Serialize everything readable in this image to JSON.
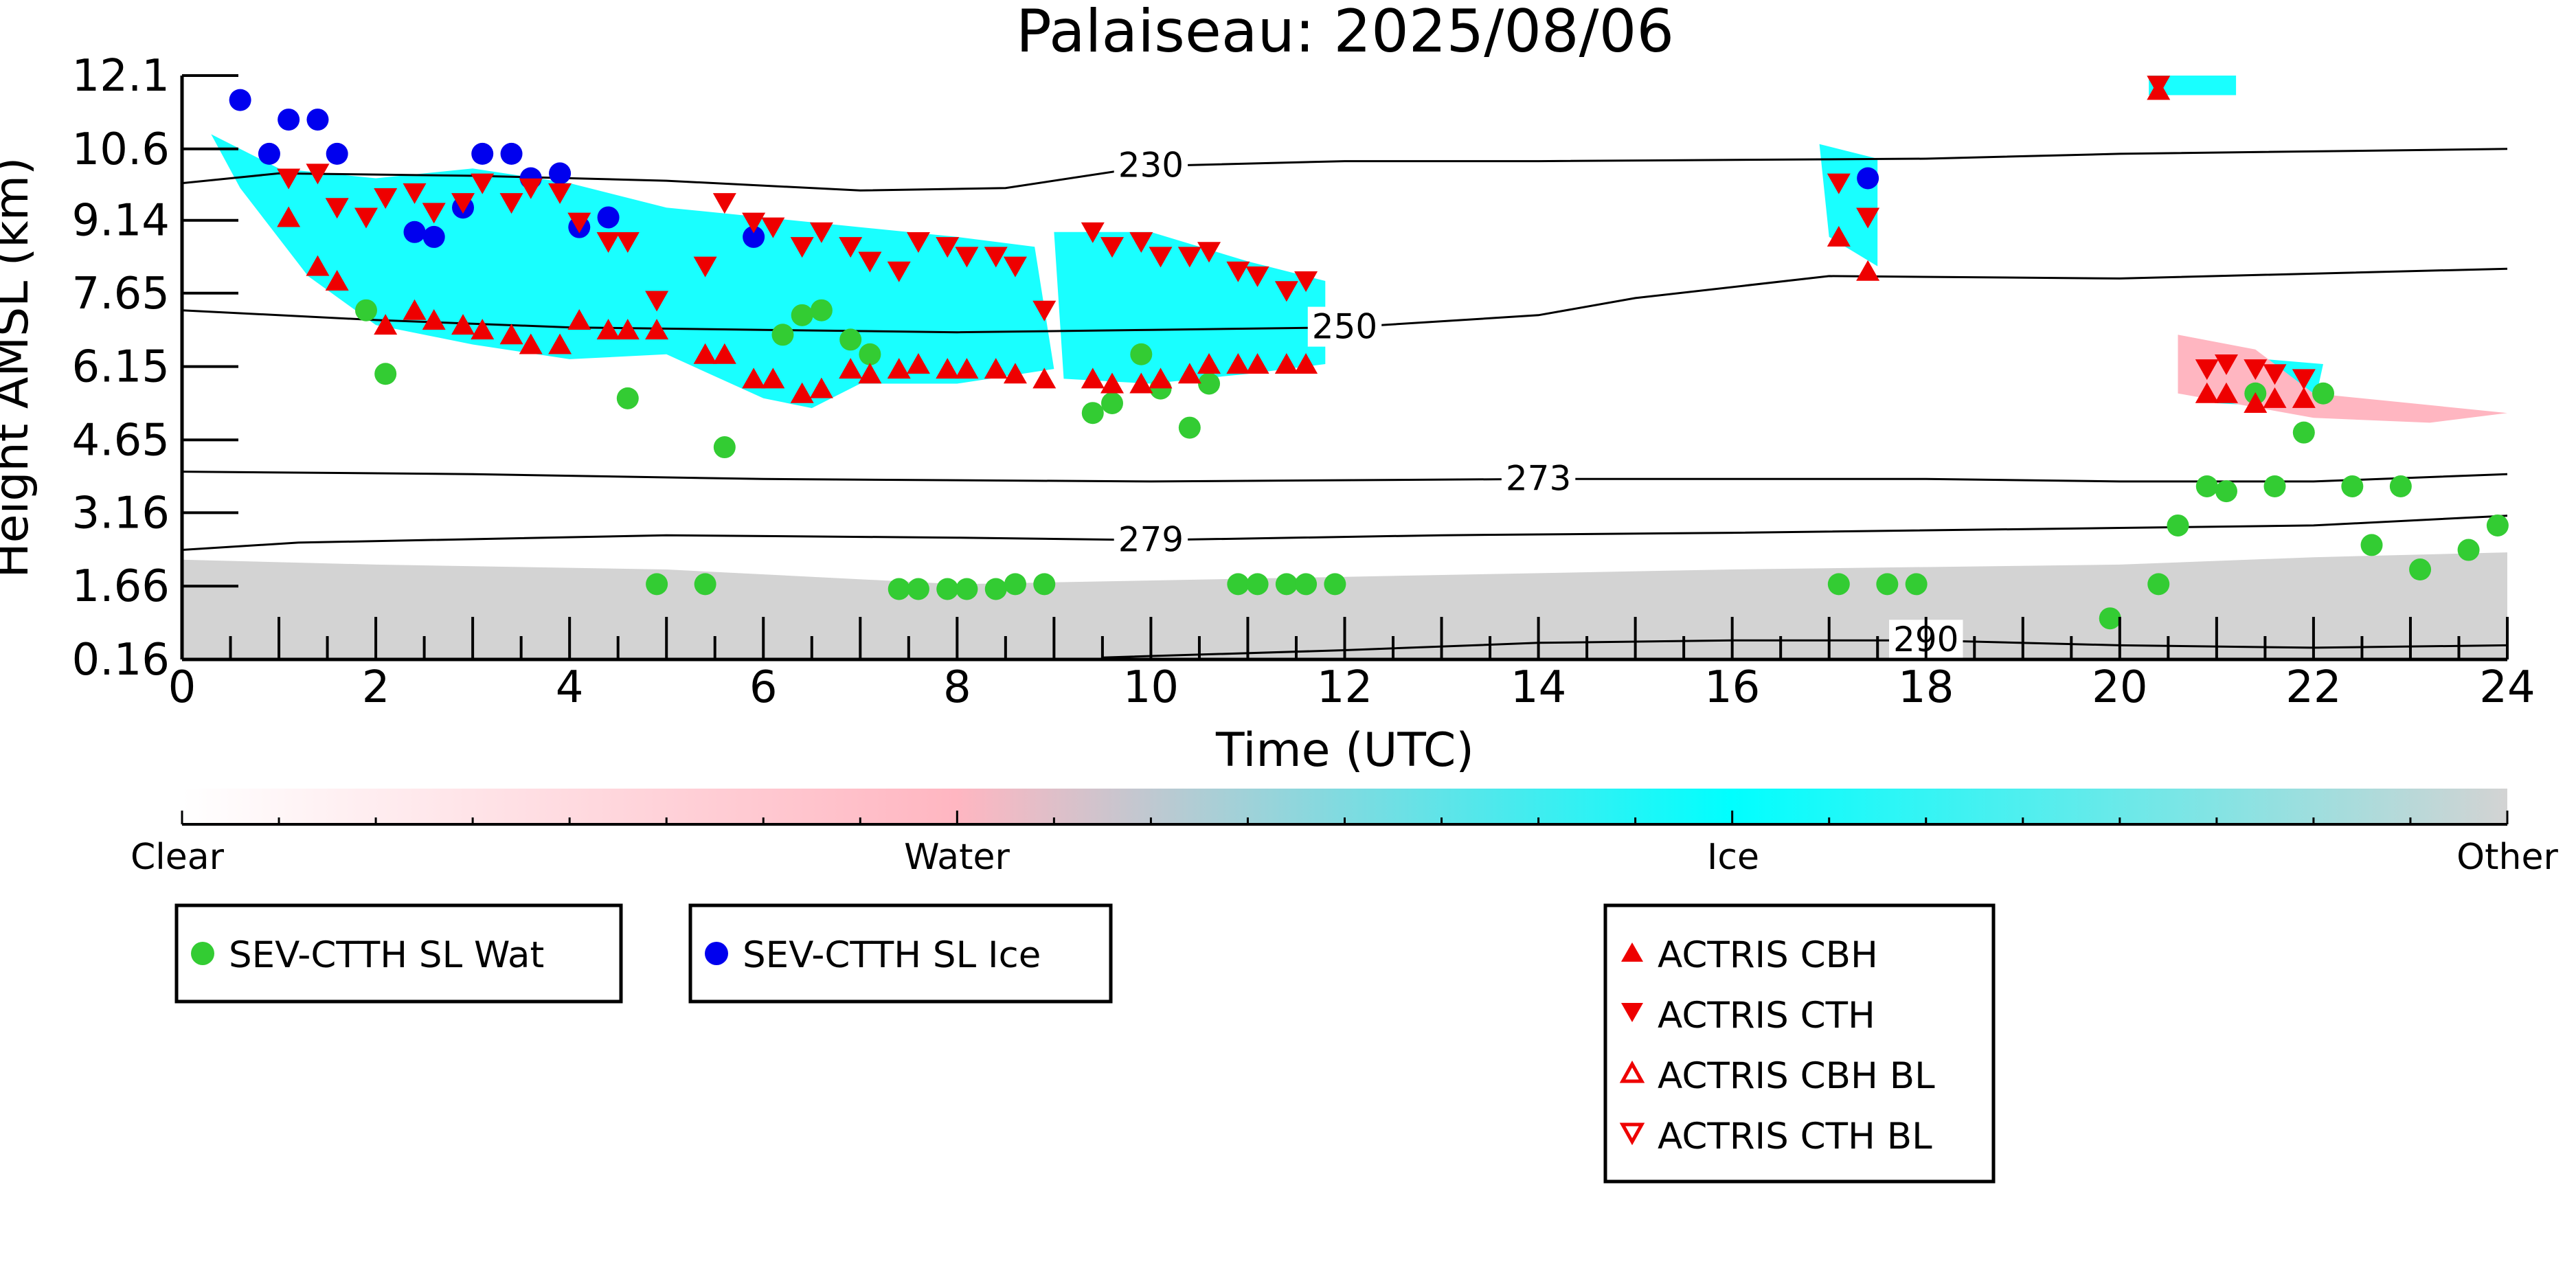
{
  "chart_data": {
    "type": "scatter",
    "title": "Palaiseau: 2025/08/06",
    "xlabel": "Time (UTC)",
    "ylabel": "Height AMSL (km)",
    "xlim": [
      0,
      24
    ],
    "ylim": [
      0.16,
      12.1
    ],
    "x_ticks": [
      0,
      2,
      4,
      6,
      8,
      10,
      12,
      14,
      16,
      18,
      20,
      22,
      24
    ],
    "y_ticks": [
      "0.16",
      "1.66",
      "3.16",
      "4.65",
      "6.15",
      "7.65",
      "9.14",
      "10.6",
      "12.1"
    ],
    "colorbar": {
      "labels": [
        "Clear",
        "Water",
        "Ice",
        "Other"
      ],
      "colors": [
        "#ffffff",
        "#ffb6c1",
        "#00ffff",
        "#d3d3d3"
      ]
    },
    "contours": [
      {
        "label": "230",
        "points": [
          [
            0,
            9.9
          ],
          [
            1,
            10.1
          ],
          [
            3,
            10.05
          ],
          [
            5,
            9.95
          ],
          [
            7,
            9.75
          ],
          [
            8.5,
            9.8
          ],
          [
            10,
            10.25
          ],
          [
            12,
            10.35
          ],
          [
            14,
            10.35
          ],
          [
            18,
            10.4
          ],
          [
            20,
            10.5
          ],
          [
            24,
            10.6
          ]
        ]
      },
      {
        "label": "250",
        "points": [
          [
            0,
            7.3
          ],
          [
            2,
            7.1
          ],
          [
            4,
            6.95
          ],
          [
            6,
            6.9
          ],
          [
            8,
            6.85
          ],
          [
            10,
            6.9
          ],
          [
            12,
            6.95
          ],
          [
            14,
            7.2
          ],
          [
            15,
            7.55
          ],
          [
            17,
            8.0
          ],
          [
            20,
            7.95
          ],
          [
            24,
            8.15
          ]
        ]
      },
      {
        "label": "273",
        "points": [
          [
            0,
            4.0
          ],
          [
            3,
            3.95
          ],
          [
            6,
            3.85
          ],
          [
            10,
            3.8
          ],
          [
            14,
            3.85
          ],
          [
            18,
            3.85
          ],
          [
            20,
            3.8
          ],
          [
            22,
            3.8
          ],
          [
            24,
            3.95
          ]
        ]
      },
      {
        "label": "279",
        "points": [
          [
            0,
            2.4
          ],
          [
            1.2,
            2.55
          ],
          [
            2.5,
            2.6
          ],
          [
            5,
            2.7
          ],
          [
            8,
            2.65
          ],
          [
            10,
            2.6
          ],
          [
            13,
            2.7
          ],
          [
            16,
            2.75
          ],
          [
            20,
            2.85
          ],
          [
            22,
            2.9
          ],
          [
            24,
            3.1
          ]
        ]
      },
      {
        "label": "290",
        "points": [
          [
            9.5,
            0.2
          ],
          [
            12,
            0.35
          ],
          [
            14,
            0.5
          ],
          [
            16,
            0.55
          ],
          [
            18,
            0.55
          ],
          [
            20,
            0.45
          ],
          [
            22,
            0.4
          ],
          [
            24,
            0.45
          ]
        ]
      }
    ],
    "cloud_regions": [
      {
        "type": "other",
        "points": [
          [
            0,
            0.16
          ],
          [
            0,
            2.2
          ],
          [
            2,
            2.1
          ],
          [
            5,
            2.0
          ],
          [
            8,
            1.7
          ],
          [
            12,
            1.85
          ],
          [
            16,
            2.0
          ],
          [
            20,
            2.1
          ],
          [
            22,
            2.25
          ],
          [
            24,
            2.35
          ],
          [
            24,
            0.16
          ]
        ]
      },
      {
        "type": "ice",
        "points": [
          [
            0.3,
            10.9
          ],
          [
            1,
            10.2
          ],
          [
            2,
            10.0
          ],
          [
            3,
            10.2
          ],
          [
            4,
            9.9
          ],
          [
            5,
            9.4
          ],
          [
            6,
            9.2
          ],
          [
            7,
            9.0
          ],
          [
            8,
            8.8
          ],
          [
            8.8,
            8.6
          ],
          [
            9,
            6.1
          ],
          [
            8,
            5.8
          ],
          [
            7,
            5.8
          ],
          [
            6.5,
            5.3
          ],
          [
            6,
            5.5
          ],
          [
            5,
            6.4
          ],
          [
            4,
            6.3
          ],
          [
            3,
            6.6
          ],
          [
            2,
            7.0
          ],
          [
            1.3,
            8.0
          ],
          [
            0.6,
            9.8
          ]
        ]
      },
      {
        "type": "ice",
        "points": [
          [
            9.0,
            8.9
          ],
          [
            10,
            8.9
          ],
          [
            11,
            8.3
          ],
          [
            11.8,
            7.9
          ],
          [
            11.8,
            6.2
          ],
          [
            11,
            6.0
          ],
          [
            10,
            5.8
          ],
          [
            9.1,
            5.9
          ]
        ]
      },
      {
        "type": "ice",
        "points": [
          [
            16.9,
            10.7
          ],
          [
            17.5,
            10.4
          ],
          [
            17.5,
            8.2
          ],
          [
            17.0,
            8.8
          ]
        ]
      },
      {
        "type": "ice",
        "points": [
          [
            20.3,
            12.1
          ],
          [
            21.2,
            12.1
          ],
          [
            21.2,
            11.7
          ],
          [
            20.3,
            11.7
          ]
        ]
      },
      {
        "type": "ice",
        "points": [
          [
            20.9,
            6.4
          ],
          [
            22.1,
            6.2
          ],
          [
            22.0,
            5.3
          ],
          [
            21.0,
            5.4
          ]
        ]
      },
      {
        "type": "water",
        "points": [
          [
            20.6,
            6.8
          ],
          [
            21.4,
            6.5
          ],
          [
            22.0,
            5.6
          ],
          [
            24.0,
            5.2
          ],
          [
            23.2,
            5.0
          ],
          [
            22.0,
            5.1
          ],
          [
            20.6,
            5.6
          ]
        ]
      }
    ],
    "series": [
      {
        "name": "SEV-CTTH SL Wat",
        "marker": "circle",
        "color": "#33cc33",
        "points": [
          [
            1.9,
            7.3
          ],
          [
            2.1,
            6.0
          ],
          [
            4.6,
            5.5
          ],
          [
            4.9,
            1.7
          ],
          [
            5.4,
            1.7
          ],
          [
            5.6,
            4.5
          ],
          [
            6.2,
            6.8
          ],
          [
            6.4,
            7.2
          ],
          [
            6.6,
            7.3
          ],
          [
            6.9,
            6.7
          ],
          [
            7.1,
            6.4
          ],
          [
            7.4,
            1.6
          ],
          [
            7.6,
            1.6
          ],
          [
            7.9,
            1.6
          ],
          [
            8.1,
            1.6
          ],
          [
            8.4,
            1.6
          ],
          [
            8.6,
            1.7
          ],
          [
            8.9,
            1.7
          ],
          [
            9.4,
            5.2
          ],
          [
            9.6,
            5.4
          ],
          [
            9.9,
            6.4
          ],
          [
            10.1,
            5.7
          ],
          [
            10.4,
            4.9
          ],
          [
            10.6,
            5.8
          ],
          [
            10.9,
            1.7
          ],
          [
            11.1,
            1.7
          ],
          [
            11.4,
            1.7
          ],
          [
            11.6,
            1.7
          ],
          [
            11.9,
            1.7
          ],
          [
            17.1,
            1.7
          ],
          [
            17.6,
            1.7
          ],
          [
            17.9,
            1.7
          ],
          [
            19.9,
            1.0
          ],
          [
            20.4,
            1.7
          ],
          [
            20.6,
            2.9
          ],
          [
            20.9,
            3.7
          ],
          [
            21.1,
            3.6
          ],
          [
            21.4,
            5.6
          ],
          [
            21.6,
            3.7
          ],
          [
            21.9,
            4.8
          ],
          [
            22.1,
            5.6
          ],
          [
            22.4,
            3.7
          ],
          [
            22.6,
            2.5
          ],
          [
            22.9,
            3.7
          ],
          [
            23.1,
            2.0
          ],
          [
            23.6,
            2.4
          ],
          [
            23.9,
            2.9
          ]
        ]
      },
      {
        "name": "SEV-CTTH SL Ice",
        "marker": "circle",
        "color": "#0000ee",
        "points": [
          [
            0.6,
            11.6
          ],
          [
            0.9,
            10.5
          ],
          [
            1.1,
            11.2
          ],
          [
            1.4,
            11.2
          ],
          [
            1.6,
            10.5
          ],
          [
            2.4,
            8.9
          ],
          [
            2.6,
            8.8
          ],
          [
            2.9,
            9.4
          ],
          [
            3.1,
            10.5
          ],
          [
            3.4,
            10.5
          ],
          [
            3.6,
            10.0
          ],
          [
            3.9,
            10.1
          ],
          [
            4.1,
            9.0
          ],
          [
            4.4,
            9.2
          ],
          [
            5.9,
            8.8
          ],
          [
            17.4,
            10.0
          ]
        ]
      },
      {
        "name": "ACTRIS CBH",
        "marker": "triangle-up",
        "color": "#ee0000",
        "points": [
          [
            1.1,
            9.2
          ],
          [
            1.4,
            8.2
          ],
          [
            1.6,
            7.9
          ],
          [
            2.1,
            7.0
          ],
          [
            2.4,
            7.3
          ],
          [
            2.6,
            7.1
          ],
          [
            2.9,
            7.0
          ],
          [
            3.1,
            6.9
          ],
          [
            3.4,
            6.8
          ],
          [
            3.6,
            6.6
          ],
          [
            3.9,
            6.6
          ],
          [
            4.1,
            7.1
          ],
          [
            4.4,
            6.9
          ],
          [
            4.6,
            6.9
          ],
          [
            4.9,
            6.9
          ],
          [
            5.4,
            6.4
          ],
          [
            5.6,
            6.4
          ],
          [
            5.9,
            5.9
          ],
          [
            6.1,
            5.9
          ],
          [
            6.4,
            5.6
          ],
          [
            6.6,
            5.7
          ],
          [
            6.9,
            6.1
          ],
          [
            7.1,
            6.0
          ],
          [
            7.4,
            6.1
          ],
          [
            7.6,
            6.2
          ],
          [
            7.9,
            6.1
          ],
          [
            8.1,
            6.1
          ],
          [
            8.4,
            6.1
          ],
          [
            8.6,
            6.0
          ],
          [
            8.9,
            5.9
          ],
          [
            9.4,
            5.9
          ],
          [
            9.6,
            5.8
          ],
          [
            9.9,
            5.8
          ],
          [
            10.1,
            5.9
          ],
          [
            10.4,
            6.0
          ],
          [
            10.6,
            6.2
          ],
          [
            10.9,
            6.2
          ],
          [
            11.1,
            6.2
          ],
          [
            11.4,
            6.2
          ],
          [
            11.6,
            6.2
          ],
          [
            17.1,
            8.8
          ],
          [
            17.4,
            8.1
          ],
          [
            20.4,
            11.8
          ],
          [
            20.9,
            5.6
          ],
          [
            21.1,
            5.6
          ],
          [
            21.4,
            5.4
          ],
          [
            21.6,
            5.5
          ],
          [
            21.9,
            5.5
          ]
        ]
      },
      {
        "name": "ACTRIS CTH",
        "marker": "triangle-down",
        "color": "#ee0000",
        "points": [
          [
            1.1,
            10.0
          ],
          [
            1.4,
            10.1
          ],
          [
            1.6,
            9.4
          ],
          [
            1.9,
            9.2
          ],
          [
            2.1,
            9.6
          ],
          [
            2.4,
            9.7
          ],
          [
            2.6,
            9.3
          ],
          [
            2.9,
            9.5
          ],
          [
            3.1,
            9.9
          ],
          [
            3.4,
            9.5
          ],
          [
            3.6,
            9.8
          ],
          [
            3.9,
            9.7
          ],
          [
            4.1,
            9.1
          ],
          [
            4.4,
            8.7
          ],
          [
            4.6,
            8.7
          ],
          [
            4.9,
            7.5
          ],
          [
            5.4,
            8.2
          ],
          [
            5.6,
            9.5
          ],
          [
            5.9,
            9.1
          ],
          [
            6.1,
            9.0
          ],
          [
            6.4,
            8.6
          ],
          [
            6.6,
            8.9
          ],
          [
            6.9,
            8.6
          ],
          [
            7.1,
            8.3
          ],
          [
            7.4,
            8.1
          ],
          [
            7.6,
            8.7
          ],
          [
            7.9,
            8.6
          ],
          [
            8.1,
            8.4
          ],
          [
            8.4,
            8.4
          ],
          [
            8.6,
            8.2
          ],
          [
            8.9,
            7.3
          ],
          [
            9.4,
            8.9
          ],
          [
            9.6,
            8.6
          ],
          [
            9.9,
            8.7
          ],
          [
            10.1,
            8.4
          ],
          [
            10.4,
            8.4
          ],
          [
            10.6,
            8.5
          ],
          [
            10.9,
            8.1
          ],
          [
            11.1,
            8.0
          ],
          [
            11.4,
            7.7
          ],
          [
            11.6,
            7.9
          ],
          [
            17.1,
            9.9
          ],
          [
            17.4,
            9.2
          ],
          [
            20.4,
            11.9
          ],
          [
            20.9,
            6.1
          ],
          [
            21.1,
            6.2
          ],
          [
            21.4,
            6.1
          ],
          [
            21.6,
            6.0
          ],
          [
            21.9,
            5.9
          ]
        ]
      },
      {
        "name": "ACTRIS CBH BL",
        "marker": "triangle-up-open",
        "color": "#ee0000",
        "points": []
      },
      {
        "name": "ACTRIS CTH BL",
        "marker": "triangle-down-open",
        "color": "#ee0000",
        "points": []
      }
    ]
  }
}
